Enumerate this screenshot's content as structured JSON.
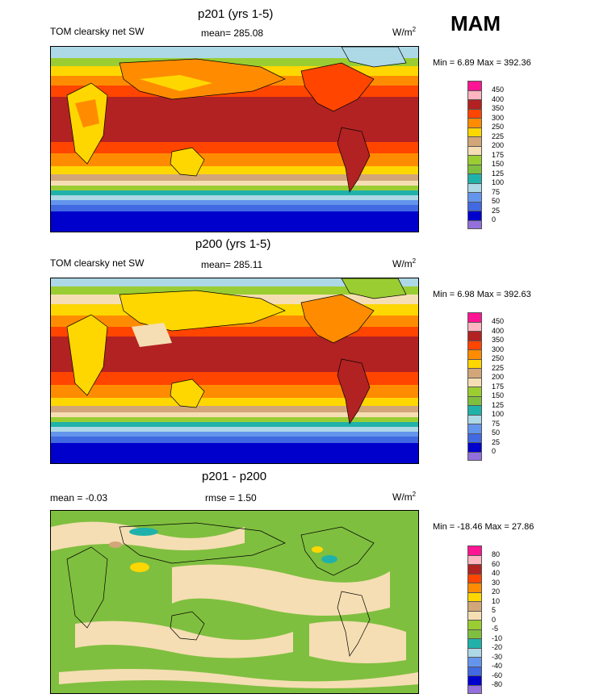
{
  "season": "MAM",
  "units": "W/m",
  "units_sup": "2",
  "panels": [
    {
      "title": "p201 (yrs 1-5)",
      "variable": "TOM clearsky net SW",
      "mean": "mean= 285.08",
      "minmax": "Min =   6.89 Max = 392.36",
      "levels": [
        "450",
        "400",
        "350",
        "300",
        "250",
        "225",
        "200",
        "175",
        "150",
        "125",
        "100",
        "75",
        "50",
        "25",
        "0"
      ]
    },
    {
      "title": "p200 (yrs 1-5)",
      "variable": "TOM clearsky net SW",
      "mean": "mean= 285.11",
      "minmax": "Min =   6.98 Max = 392.63",
      "levels": [
        "450",
        "400",
        "350",
        "300",
        "250",
        "225",
        "200",
        "175",
        "150",
        "125",
        "100",
        "75",
        "50",
        "25",
        "0"
      ]
    },
    {
      "title": "p201 - p200",
      "variable": "mean =  -0.03",
      "mean": "rmse =   1.50",
      "units": "W/m",
      "units_sup": "2",
      "minmax": "Min = -18.46 Max =  27.86",
      "levels": [
        "80",
        "60",
        "40",
        "30",
        "20",
        "10",
        "5",
        "0",
        "-5",
        "-10",
        "-20",
        "-30",
        "-40",
        "-60",
        "-80"
      ]
    }
  ],
  "colors": {
    "scale": [
      "#ff1493",
      "#ffb6c1",
      "#b22222",
      "#ff4500",
      "#ff8c00",
      "#ffd700",
      "#d2a679",
      "#f5deb3",
      "#9acd32",
      "#7fbf3f",
      "#20b2aa",
      "#add8e6",
      "#6495ed",
      "#4169e1",
      "#0000cd",
      "#9370db"
    ]
  }
}
